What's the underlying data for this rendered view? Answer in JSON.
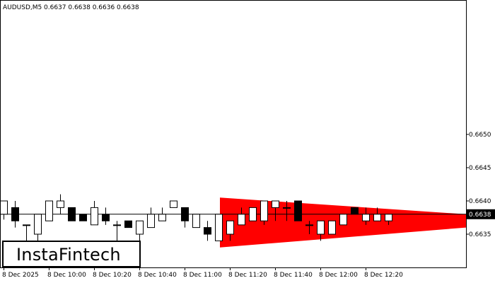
{
  "header": {
    "symbol": "AUDUSD,M5",
    "ohlc": "0.6637 0.6638 0.6636 0.6638"
  },
  "logo": {
    "text": "InstaFintech"
  },
  "colors": {
    "pattern": "#ff0000",
    "bull": "#ffffff",
    "bear": "#000000",
    "price_line": "#000000",
    "price_tag": "#000000"
  },
  "chart_data": {
    "type": "candlestick",
    "title": "AUDUSD,M5  0.6637 0.6638 0.6636 0.6638",
    "ylim": [
      0.663,
      0.665
    ],
    "y_ticks": [
      {
        "value": 0.665,
        "label": "0.6650"
      },
      {
        "value": 0.6645,
        "label": "0.6645"
      },
      {
        "value": 0.664,
        "label": "0.6640"
      },
      {
        "value": 0.6635,
        "label": "0.6635"
      }
    ],
    "x_ticks": [
      {
        "index": 0,
        "label": "8 Dec 2025"
      },
      {
        "index": 4,
        "label": "8 Dec 10:00"
      },
      {
        "index": 8,
        "label": "8 Dec 10:20"
      },
      {
        "index": 12,
        "label": "8 Dec 10:40"
      },
      {
        "index": 16,
        "label": "8 Dec 11:00"
      },
      {
        "index": 20,
        "label": "8 Dec 11:20"
      },
      {
        "index": 24,
        "label": "8 Dec 11:40"
      },
      {
        "index": 28,
        "label": "8 Dec 12:00"
      },
      {
        "index": 32,
        "label": "8 Dec 12:20"
      }
    ],
    "current_price": {
      "value": 0.6638,
      "label": "0.6638"
    },
    "candles": [
      {
        "o": 0.6638,
        "h": 0.664,
        "l": 0.66372,
        "c": 0.664
      },
      {
        "o": 0.6639,
        "h": 0.664,
        "l": 0.6636,
        "c": 0.6637
      },
      {
        "o": 0.66364,
        "h": 0.66364,
        "l": 0.6634,
        "c": 0.66364
      },
      {
        "o": 0.6635,
        "h": 0.6638,
        "l": 0.6634,
        "c": 0.6638
      },
      {
        "o": 0.6637,
        "h": 0.664,
        "l": 0.6637,
        "c": 0.664
      },
      {
        "o": 0.6639,
        "h": 0.6641,
        "l": 0.6638,
        "c": 0.664
      },
      {
        "o": 0.6639,
        "h": 0.6639,
        "l": 0.6637,
        "c": 0.6637
      },
      {
        "o": 0.6638,
        "h": 0.6638,
        "l": 0.6637,
        "c": 0.6637
      },
      {
        "o": 0.66364,
        "h": 0.664,
        "l": 0.66364,
        "c": 0.6639
      },
      {
        "o": 0.6638,
        "h": 0.6639,
        "l": 0.66364,
        "c": 0.6637
      },
      {
        "o": 0.66364,
        "h": 0.6637,
        "l": 0.6634,
        "c": 0.66364
      },
      {
        "o": 0.6637,
        "h": 0.6637,
        "l": 0.6636,
        "c": 0.6636
      },
      {
        "o": 0.6635,
        "h": 0.6637,
        "l": 0.6634,
        "c": 0.6637
      },
      {
        "o": 0.6636,
        "h": 0.6639,
        "l": 0.6636,
        "c": 0.6638
      },
      {
        "o": 0.6637,
        "h": 0.6639,
        "l": 0.6637,
        "c": 0.6638
      },
      {
        "o": 0.6639,
        "h": 0.664,
        "l": 0.6639,
        "c": 0.664
      },
      {
        "o": 0.6639,
        "h": 0.6639,
        "l": 0.6636,
        "c": 0.6637
      },
      {
        "o": 0.6636,
        "h": 0.6638,
        "l": 0.6636,
        "c": 0.6638
      },
      {
        "o": 0.6636,
        "h": 0.6637,
        "l": 0.6634,
        "c": 0.6635
      },
      {
        "o": 0.6634,
        "h": 0.6638,
        "l": 0.6634,
        "c": 0.6638
      },
      {
        "o": 0.6635,
        "h": 0.6637,
        "l": 0.6634,
        "c": 0.6637
      },
      {
        "o": 0.66364,
        "h": 0.6639,
        "l": 0.66364,
        "c": 0.6638
      },
      {
        "o": 0.6637,
        "h": 0.6639,
        "l": 0.6637,
        "c": 0.6639
      },
      {
        "o": 0.6637,
        "h": 0.664,
        "l": 0.66364,
        "c": 0.664
      },
      {
        "o": 0.6639,
        "h": 0.664,
        "l": 0.6637,
        "c": 0.664
      },
      {
        "o": 0.6639,
        "h": 0.664,
        "l": 0.6637,
        "c": 0.6639
      },
      {
        "o": 0.664,
        "h": 0.664,
        "l": 0.6637,
        "c": 0.6637
      },
      {
        "o": 0.66364,
        "h": 0.6637,
        "l": 0.6635,
        "c": 0.66364
      },
      {
        "o": 0.6635,
        "h": 0.6637,
        "l": 0.6634,
        "c": 0.6637
      },
      {
        "o": 0.6635,
        "h": 0.6637,
        "l": 0.6635,
        "c": 0.6637
      },
      {
        "o": 0.66364,
        "h": 0.6638,
        "l": 0.66364,
        "c": 0.6638
      },
      {
        "o": 0.6639,
        "h": 0.6639,
        "l": 0.6638,
        "c": 0.6638
      },
      {
        "o": 0.6637,
        "h": 0.6639,
        "l": 0.66364,
        "c": 0.6638
      },
      {
        "o": 0.6637,
        "h": 0.6639,
        "l": 0.6637,
        "c": 0.6638
      },
      {
        "o": 0.6637,
        "h": 0.6638,
        "l": 0.66364,
        "c": 0.6638
      }
    ],
    "pattern": {
      "type": "triangle",
      "start_index": 19,
      "upper_start": 0.66405,
      "lower_start": 0.6633,
      "upper_end": 0.6638,
      "lower_end": 0.6636
    }
  }
}
